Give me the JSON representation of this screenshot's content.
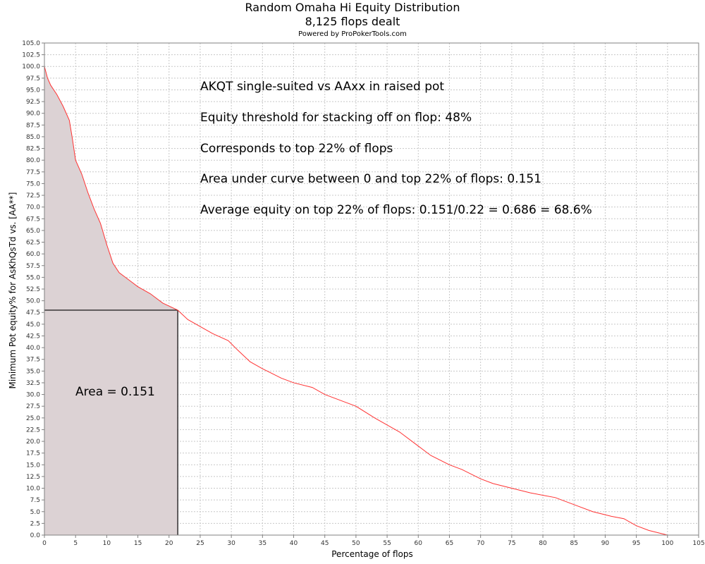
{
  "header": {
    "title": "Random Omaha Hi Equity Distribution",
    "subtitle": "8,125 flops dealt",
    "credit": "Powered by ProPokerTools.com"
  },
  "chart_data": {
    "type": "area",
    "title": "Random Omaha Hi Equity Distribution",
    "subtitle": "8,125 flops dealt",
    "xlabel": "Percentage of flops",
    "ylabel": "Minimum Pot equity% for AsKhQsTd vs. [AA**]",
    "xlim": [
      0,
      105
    ],
    "ylim": [
      0,
      105
    ],
    "x_ticks": [
      "0",
      "5",
      "10",
      "15",
      "20",
      "25",
      "30",
      "35",
      "40",
      "45",
      "50",
      "55",
      "60",
      "65",
      "70",
      "75",
      "80",
      "85",
      "90",
      "95",
      "100",
      "105"
    ],
    "y_ticks": [
      "0.0",
      "2.5",
      "5.0",
      "7.5",
      "10.0",
      "12.5",
      "15.0",
      "17.5",
      "20.0",
      "22.5",
      "25.0",
      "27.5",
      "30.0",
      "32.5",
      "35.0",
      "37.5",
      "40.0",
      "42.5",
      "45.0",
      "47.5",
      "50.0",
      "52.5",
      "55.0",
      "57.5",
      "60.0",
      "62.5",
      "65.0",
      "67.5",
      "70.0",
      "72.5",
      "75.0",
      "77.5",
      "80.0",
      "82.5",
      "85.0",
      "87.5",
      "90.0",
      "92.5",
      "95.0",
      "97.5",
      "100.0",
      "102.5",
      "105.0"
    ],
    "grid": true,
    "series": [
      {
        "x": [
          0,
          0.5,
          1,
          2,
          3,
          4,
          4.5,
          5,
          6,
          7,
          8,
          9,
          10,
          11,
          12,
          13,
          14,
          15,
          17,
          19,
          21.4,
          23,
          25,
          27,
          29.5,
          31,
          33,
          35,
          38,
          40,
          43,
          45,
          48,
          50,
          53,
          55,
          57,
          60,
          62,
          65,
          67,
          70,
          72,
          75,
          78,
          80,
          82,
          85,
          88,
          91,
          93,
          95,
          97,
          100
        ],
        "y": [
          100,
          97.5,
          96,
          94,
          91.5,
          88.5,
          84.5,
          80,
          77,
          73,
          69.5,
          66.5,
          62,
          58,
          56,
          55,
          54,
          53,
          51.5,
          49.5,
          48,
          46,
          44.5,
          43,
          41.5,
          39.5,
          37,
          35.5,
          33.5,
          32.5,
          31.5,
          30,
          28.5,
          27.5,
          25,
          23.5,
          22,
          19,
          17,
          15,
          14,
          12,
          11,
          10,
          9,
          8.5,
          8,
          6.5,
          5,
          4,
          3.5,
          2,
          1,
          0
        ],
        "color": "#ff3333"
      }
    ],
    "shaded_region": {
      "x_range": [
        0,
        21.4
      ],
      "y_threshold": 48,
      "fill": "#dcd2d4"
    },
    "annotations": [
      "AKQT single-suited vs AAxx in raised pot",
      "Equity threshold for stacking off on flop: 48%",
      "Corresponds to top 22% of flops",
      "Area under curve between 0 and top 22% of flops: 0.151",
      "Average equity on top 22% of flops: 0.151/0.22 = 0.686 = 68.6%"
    ],
    "area_label": "Area = 0.151"
  }
}
